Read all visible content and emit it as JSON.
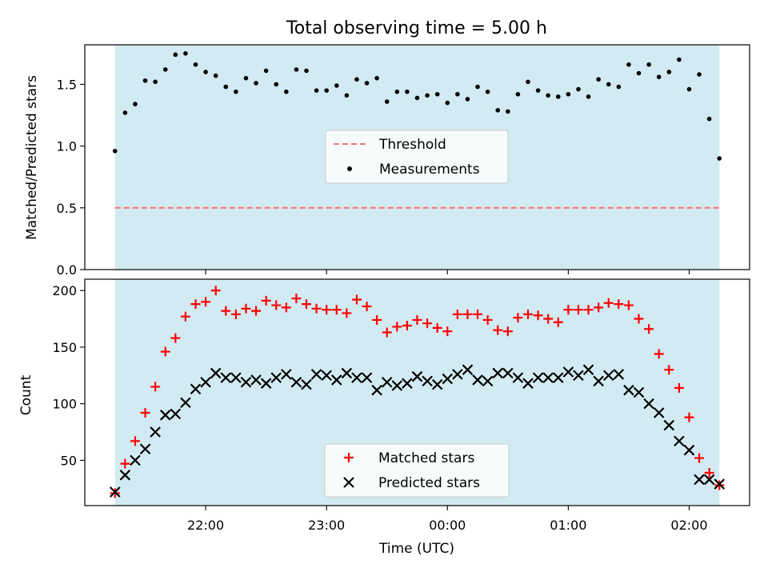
{
  "chart_data": [
    {
      "type": "scatter",
      "title": "Total observing time = 5.00 h",
      "xlabel": "",
      "ylabel": "Matched/Predicted stars",
      "ylim": [
        0,
        1.82
      ],
      "yticks": [
        "0.0",
        "0.5",
        "1.0",
        "1.5"
      ],
      "threshold": {
        "name": "Threshold",
        "value": 0.5,
        "color": "#ff7070"
      },
      "shaded_region": {
        "start": "21:15",
        "end": "02:15",
        "color": "#add8e6"
      },
      "legend_position": "center",
      "series": [
        {
          "name": "Measurements",
          "color": "#000000",
          "marker": "dot",
          "y": [
            0.96,
            1.27,
            1.34,
            1.53,
            1.52,
            1.62,
            1.74,
            1.75,
            1.66,
            1.6,
            1.57,
            1.48,
            1.44,
            1.55,
            1.51,
            1.61,
            1.5,
            1.44,
            1.62,
            1.61,
            1.45,
            1.45,
            1.49,
            1.41,
            1.54,
            1.51,
            1.55,
            1.36,
            1.44,
            1.44,
            1.39,
            1.41,
            1.42,
            1.35,
            1.42,
            1.38,
            1.48,
            1.44,
            1.29,
            1.28,
            1.42,
            1.52,
            1.45,
            1.41,
            1.4,
            1.42,
            1.46,
            1.4,
            1.54,
            1.5,
            1.48,
            1.66,
            1.59,
            1.66,
            1.56,
            1.6,
            1.7,
            1.46,
            1.58,
            1.22,
            0.9
          ]
        }
      ]
    },
    {
      "type": "scatter",
      "xlabel": "Time (UTC)",
      "ylabel": "Count",
      "ylim": [
        10,
        210
      ],
      "yticks": [
        "50",
        "100",
        "150",
        "200"
      ],
      "x_range": [
        "21:00",
        "02:30"
      ],
      "xticks": [
        "22:00",
        "23:00",
        "00:00",
        "01:00",
        "02:00"
      ],
      "legend_position": "lower center",
      "series": [
        {
          "name": "Matched stars",
          "color": "#ff0000",
          "marker": "plus",
          "y": [
            21,
            47,
            67,
            92,
            115,
            146,
            158,
            177,
            188,
            190,
            200,
            182,
            179,
            184,
            182,
            191,
            187,
            185,
            193,
            188,
            184,
            183,
            183,
            180,
            192,
            186,
            174,
            163,
            168,
            169,
            174,
            171,
            167,
            164,
            179,
            179,
            179,
            174,
            165,
            164,
            176,
            179,
            178,
            175,
            172,
            183,
            183,
            183,
            185,
            189,
            188,
            187,
            175,
            166,
            144,
            130,
            114,
            88,
            52,
            39,
            28
          ]
        },
        {
          "name": "Predicted stars",
          "color": "#000000",
          "marker": "x",
          "y": [
            22,
            37,
            50,
            60,
            75,
            90,
            91,
            101,
            113,
            119,
            127,
            123,
            123,
            119,
            121,
            118,
            123,
            126,
            119,
            117,
            126,
            125,
            121,
            127,
            123,
            123,
            112,
            119,
            116,
            118,
            124,
            120,
            117,
            122,
            126,
            130,
            121,
            120,
            127,
            127,
            123,
            118,
            123,
            123,
            123,
            128,
            125,
            130,
            120,
            125,
            126,
            112,
            110,
            100,
            92,
            81,
            67,
            59,
            33,
            33,
            29
          ]
        }
      ]
    }
  ]
}
